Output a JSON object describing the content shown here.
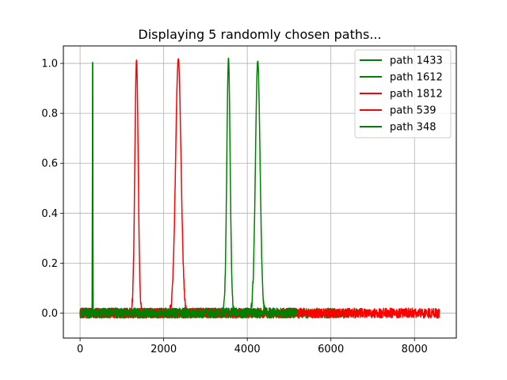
{
  "chart_data": {
    "type": "line",
    "title": "Displaying 5 randomly chosen paths...",
    "xlabel": "",
    "ylabel": "",
    "xlim": [
      -400,
      9000
    ],
    "ylim": [
      -0.1,
      1.07
    ],
    "xticks": [
      0,
      2000,
      4000,
      6000,
      8000
    ],
    "xtick_labels": [
      "0",
      "2000",
      "4000",
      "6000",
      "8000"
    ],
    "yticks": [
      0.0,
      0.2,
      0.4,
      0.6,
      0.8,
      1.0
    ],
    "ytick_labels": [
      "0.0",
      "0.2",
      "0.4",
      "0.6",
      "0.8",
      "1.0"
    ],
    "grid": true,
    "legend_position": "top-right",
    "noise_amplitude": 0.02,
    "series": [
      {
        "name": "path 1433",
        "color": "#008000",
        "x_end": 4650,
        "peak_x": 3550,
        "peak_y": 1.02,
        "peak_width": 40
      },
      {
        "name": "path 1612",
        "color": "#008000",
        "x_end": 6650,
        "peak_x": 4250,
        "peak_y": 1.01,
        "peak_width": 55
      },
      {
        "name": "path 1812",
        "color": "#ff0000",
        "x_end": 8600,
        "peak_x": 2350,
        "peak_y": 1.02,
        "peak_width": 65
      },
      {
        "name": "path 539",
        "color": "#ff0000",
        "x_end": 3400,
        "peak_x": 1350,
        "peak_y": 1.015,
        "peak_width": 40
      },
      {
        "name": "path 348",
        "color": "#008000",
        "x_end": 5200,
        "peak_x": 300,
        "peak_y": 1.005,
        "peak_width": 4
      }
    ]
  }
}
